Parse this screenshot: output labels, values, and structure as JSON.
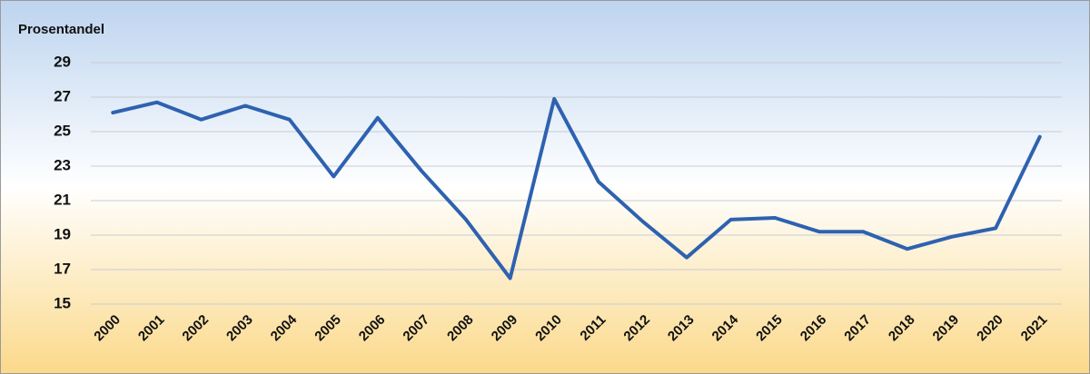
{
  "chart_data": {
    "type": "line",
    "y_label": "Prosentandel",
    "categories": [
      "2000",
      "2001",
      "2002",
      "2003",
      "2004",
      "2005",
      "2006",
      "2007",
      "2008",
      "2009",
      "2010",
      "2011",
      "2012",
      "2013",
      "2014",
      "2015",
      "2016",
      "2017",
      "2018",
      "2019",
      "2020",
      "2021"
    ],
    "values": [
      26.1,
      26.7,
      25.7,
      26.5,
      25.7,
      22.4,
      25.8,
      22.7,
      19.9,
      16.5,
      26.9,
      22.1,
      19.8,
      17.7,
      19.9,
      20.0,
      19.2,
      19.2,
      18.2,
      18.9,
      19.4,
      24.7
    ],
    "color": "#2e62b0",
    "ylim": [
      15,
      29
    ],
    "yticks": [
      15,
      17,
      19,
      21,
      23,
      25,
      27,
      29
    ],
    "grid": true
  }
}
